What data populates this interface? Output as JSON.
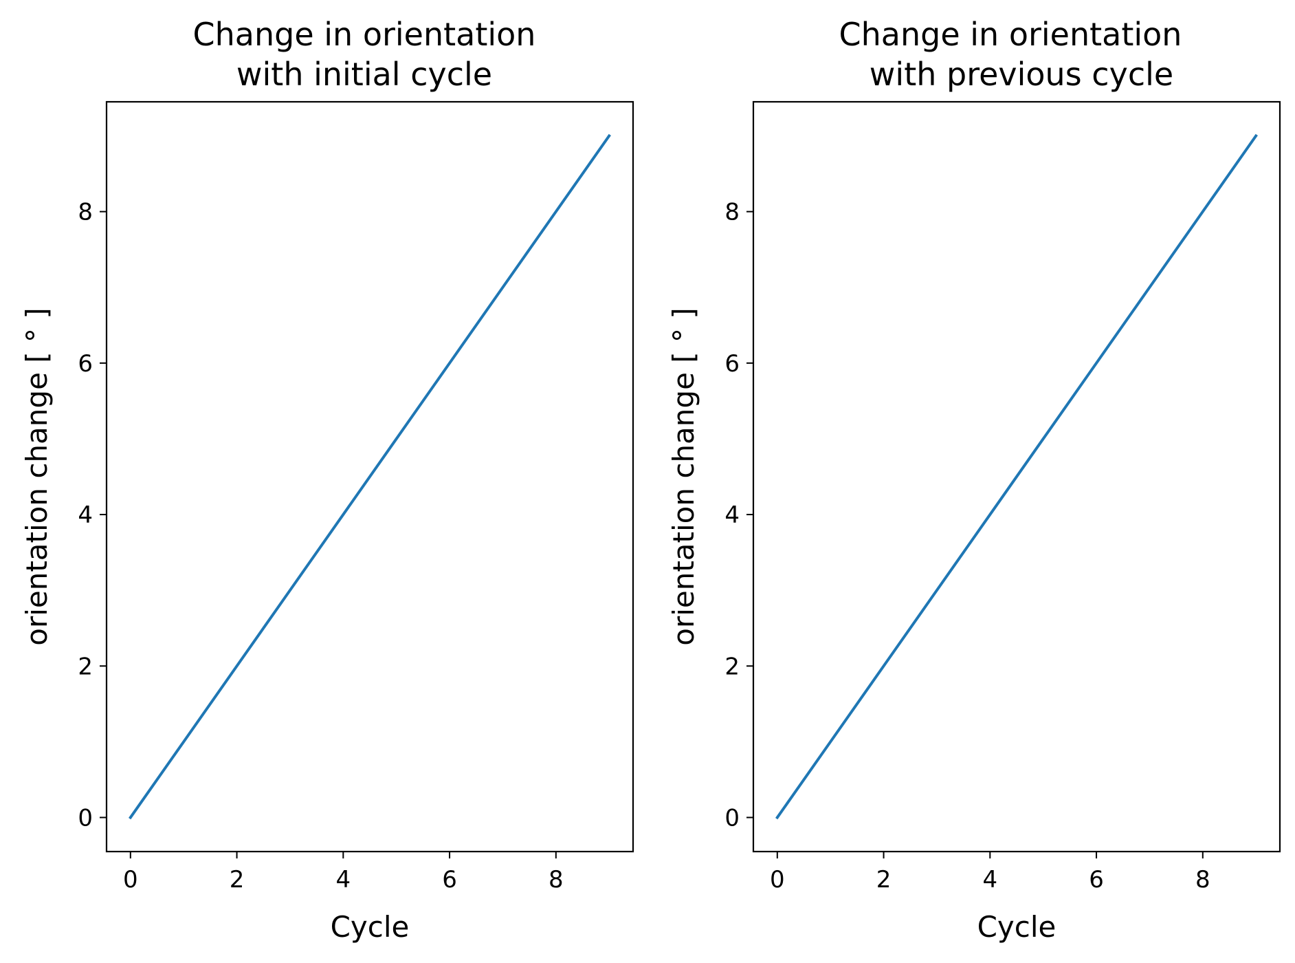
{
  "chart_data": [
    {
      "type": "line",
      "title_lines": [
        "Change in orientation",
        "with initial cycle"
      ],
      "xlabel": "Cycle",
      "ylabel": "orientation change [$^\\circ$]",
      "ylabel_display": "orientation change [ ° ]",
      "xlim": [
        -0.45,
        9.45
      ],
      "ylim": [
        -0.45,
        9.45
      ],
      "xticks": [
        0,
        2,
        4,
        6,
        8
      ],
      "yticks": [
        0,
        2,
        4,
        6,
        8
      ],
      "grid": false,
      "series": [
        {
          "color": "#1f77b4",
          "x": [
            0,
            1,
            2,
            3,
            4,
            5,
            6,
            7,
            8,
            9
          ],
          "y": [
            0,
            1,
            2,
            3,
            4,
            5,
            6,
            7,
            8,
            9
          ]
        }
      ]
    },
    {
      "type": "line",
      "title_lines": [
        "Change in orientation",
        "with previous cycle"
      ],
      "xlabel": "Cycle",
      "ylabel_display": "orientation change [ ° ]",
      "xlim": [
        -0.45,
        9.45
      ],
      "ylim": [
        -0.45,
        9.45
      ],
      "xticks": [
        0,
        2,
        4,
        6,
        8
      ],
      "yticks": [
        0,
        2,
        4,
        6,
        8
      ],
      "grid": false,
      "series": [
        {
          "color": "#1f77b4",
          "x": [
            0,
            1,
            2,
            3,
            4,
            5,
            6,
            7,
            8,
            9
          ],
          "y": [
            0,
            1,
            2,
            3,
            4,
            5,
            6,
            7,
            8,
            9
          ]
        }
      ]
    }
  ]
}
